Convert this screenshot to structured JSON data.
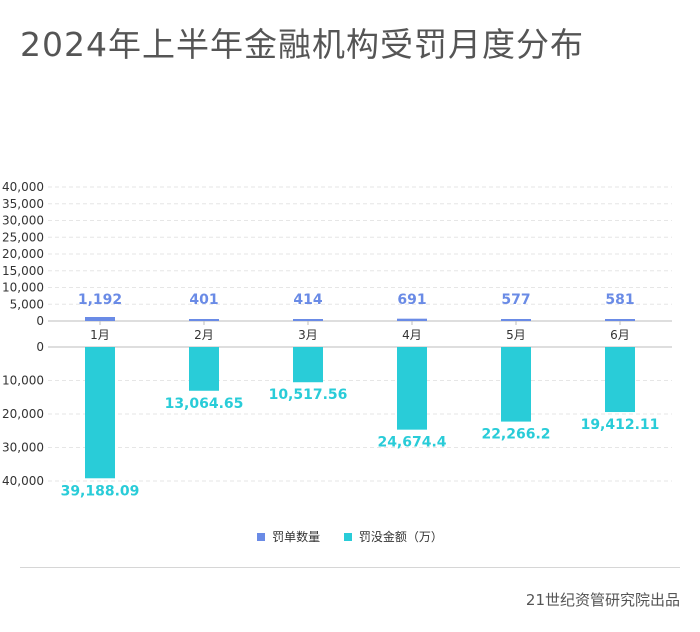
{
  "title": "2024年上半年金融机构受罚月度分布",
  "credit": "21世纪资管研究院出品",
  "chart_data": {
    "type": "bar",
    "categories": [
      "1月",
      "2月",
      "3月",
      "4月",
      "5月",
      "6月"
    ],
    "series": [
      {
        "name": "罚单数量",
        "color": "#6a8be6",
        "values": [
          1192,
          401,
          414,
          691,
          577,
          581
        ],
        "labels": [
          "1,192",
          "401",
          "414",
          "691",
          "577",
          "581"
        ]
      },
      {
        "name": "罚没金额（万）",
        "color": "#29ccd8",
        "values": [
          39188.09,
          13064.65,
          10517.56,
          24674.4,
          22266.2,
          19412.11
        ],
        "labels": [
          "39,188.09",
          "13,064.65",
          "10,517.56",
          "24,674.4",
          "22,266.2",
          "19,412.11"
        ]
      }
    ],
    "upper_axis": {
      "ylim": [
        0,
        40000
      ],
      "ticks": [
        0,
        5000,
        10000,
        15000,
        20000,
        25000,
        30000,
        35000,
        40000
      ],
      "tick_labels": [
        "0",
        "5,000",
        "10,000",
        "15,000",
        "20,000",
        "25,000",
        "30,000",
        "35,000",
        "40,000"
      ]
    },
    "lower_axis": {
      "ylim": [
        0,
        40000
      ],
      "inverted": true,
      "ticks": [
        0,
        10000,
        20000,
        30000,
        40000
      ],
      "tick_labels": [
        "0",
        "10,000",
        "20,000",
        "30,000",
        "40,000"
      ]
    },
    "grid": true,
    "legend_position": "bottom"
  }
}
